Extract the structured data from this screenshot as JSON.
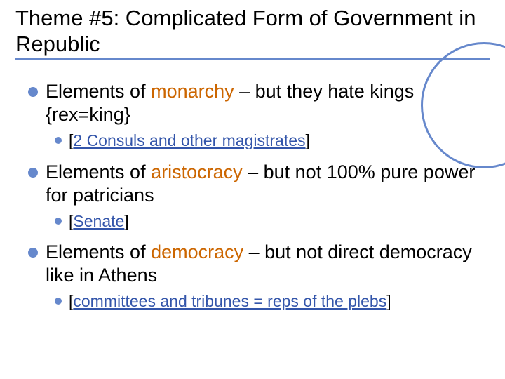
{
  "colors": {
    "accent": "#6688cc",
    "highlight": "#cc6600",
    "link": "#3355aa",
    "text": "#000000",
    "background": "#ffffff"
  },
  "title": "Theme #5: Complicated Form of Government in Republic",
  "items": [
    {
      "pre": "Elements of ",
      "hl": "monarchy",
      "post": " – but they hate kings {rex=king}",
      "sub": {
        "open": "[",
        "link": "2 Consuls and other magistrates",
        "close": "]"
      }
    },
    {
      "pre": "Elements of ",
      "hl": "aristocracy",
      "post": " – but not 100% pure power for patricians",
      "sub": {
        "open": "[",
        "link": "Senate",
        "close": "]"
      }
    },
    {
      "pre": "Elements of ",
      "hl": "democracy",
      "post": " – but not direct democracy like in Athens",
      "sub": {
        "open": "[",
        "link": "committees and tribunes = reps of the plebs",
        "close": "]"
      }
    }
  ]
}
